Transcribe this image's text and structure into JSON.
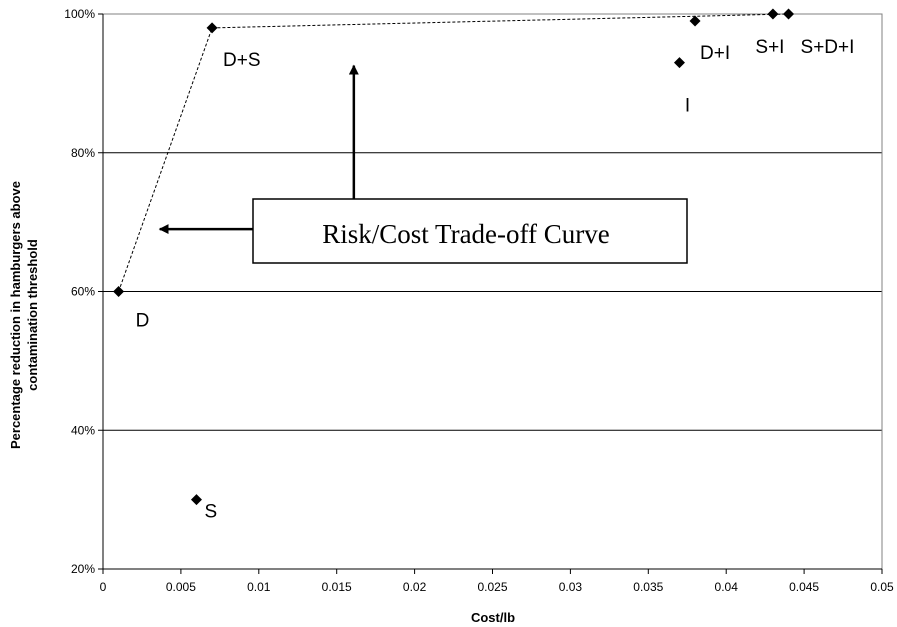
{
  "chart_data": {
    "type": "scatter",
    "title": "",
    "xlabel": "Cost/lb",
    "ylabel_lines": [
      "Percentage reduction in hamburgers above",
      "contamination threshold"
    ],
    "xlim": [
      0,
      0.05
    ],
    "ylim": [
      0.2,
      1.0
    ],
    "x_ticks": [
      0,
      0.005,
      0.01,
      0.015,
      0.02,
      0.025,
      0.03,
      0.035,
      0.04,
      0.045,
      0.05
    ],
    "x_tick_labels": [
      "0",
      "0.005",
      "0.01",
      "0.015",
      "0.02",
      "0.025",
      "0.03",
      "0.035",
      "0.04",
      "0.045",
      "0.05"
    ],
    "y_ticks": [
      0.2,
      0.4,
      0.6,
      0.8,
      1.0
    ],
    "y_tick_labels": [
      "20%",
      "40%",
      "60%",
      "80%",
      "100%"
    ],
    "grid": "horizontal",
    "legend": "none",
    "points": [
      {
        "label": "D",
        "x": 0.001,
        "y": 0.6
      },
      {
        "label": "S",
        "x": 0.006,
        "y": 0.3
      },
      {
        "label": "D+S",
        "x": 0.007,
        "y": 0.98
      },
      {
        "label": "I",
        "x": 0.037,
        "y": 0.93
      },
      {
        "label": "D+I",
        "x": 0.038,
        "y": 0.99
      },
      {
        "label": "S+I",
        "x": 0.043,
        "y": 1.0
      },
      {
        "label": "S+D+I",
        "x": 0.044,
        "y": 1.0
      }
    ],
    "tradeoff_curve": [
      {
        "x": 0.001,
        "y": 0.6
      },
      {
        "x": 0.007,
        "y": 0.98
      },
      {
        "x": 0.044,
        "y": 1.0
      }
    ],
    "annotation": {
      "text": "Risk/Cost Trade-off Curve",
      "arrow_left_target": {
        "x": 0.003,
        "y": 0.69
      },
      "arrow_up_target": {
        "x": 0.0161,
        "y": 0.94
      }
    },
    "marker_color": "#000000",
    "curve_color": "#000000"
  }
}
